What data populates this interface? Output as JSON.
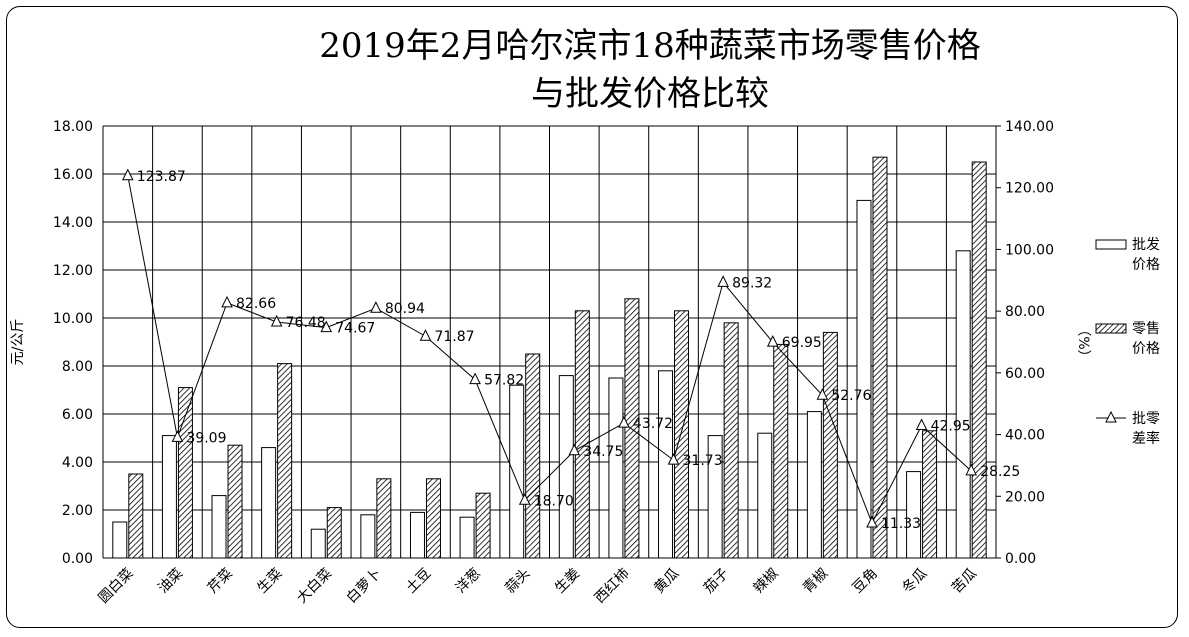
{
  "chart_data": {
    "type": "bar",
    "title_line1": "2019年2月哈尔滨市18种蔬菜市场零售价格",
    "title_line2": "与批发价格比较",
    "ylabel_left": "元/公斤",
    "ylabel_right": "（%）",
    "ylim_left": [
      0,
      18
    ],
    "ylim_right": [
      0,
      140
    ],
    "yticks_left": [
      "0.00",
      "2.00",
      "4.00",
      "6.00",
      "8.00",
      "10.00",
      "12.00",
      "14.00",
      "16.00",
      "18.00"
    ],
    "yticks_right": [
      "0.00",
      "20.00",
      "40.00",
      "60.00",
      "80.00",
      "100.00",
      "120.00",
      "140.00"
    ],
    "categories": [
      "圆白菜",
      "油菜",
      "芹菜",
      "生菜",
      "大白菜",
      "白萝卜",
      "土豆",
      "洋葱",
      "蒜头",
      "生姜",
      "西红柿",
      "黄瓜",
      "茄子",
      "辣椒",
      "青椒",
      "豆角",
      "冬瓜",
      "苦瓜"
    ],
    "series": [
      {
        "name": "批发价格",
        "axis": "left",
        "kind": "bar",
        "values": [
          1.5,
          5.1,
          2.6,
          4.6,
          1.2,
          1.8,
          1.9,
          1.7,
          7.2,
          7.6,
          7.5,
          7.8,
          5.1,
          5.2,
          6.1,
          14.9,
          3.6,
          12.8
        ]
      },
      {
        "name": "零售价格",
        "axis": "left",
        "kind": "bar",
        "values": [
          3.5,
          7.1,
          4.7,
          8.1,
          2.1,
          3.3,
          3.3,
          2.7,
          8.5,
          10.3,
          10.8,
          10.3,
          9.8,
          8.9,
          9.4,
          16.7,
          5.3,
          16.5
        ]
      },
      {
        "name": "批零差率",
        "axis": "right",
        "kind": "line",
        "values": [
          123.87,
          39.09,
          82.66,
          76.48,
          74.67,
          80.94,
          71.87,
          57.82,
          18.7,
          34.75,
          43.72,
          31.73,
          89.32,
          69.95,
          52.76,
          11.33,
          42.95,
          28.25
        ],
        "labels": [
          "123.87",
          "39.09",
          "82.66",
          "76.48",
          "74.67",
          "80.94",
          "71.87",
          "57.82",
          "18.70",
          "34.75",
          "43.72",
          "31.73",
          "89.32",
          "69.95",
          "52.76",
          "11.33",
          "42.95",
          "28.25"
        ]
      }
    ],
    "legend": [
      {
        "line1": "批发",
        "line2": "价格"
      },
      {
        "line1": "零售",
        "line2": "价格"
      },
      {
        "line1": "批零",
        "line2": "差率"
      }
    ],
    "legend_position": "right",
    "grid": true
  }
}
